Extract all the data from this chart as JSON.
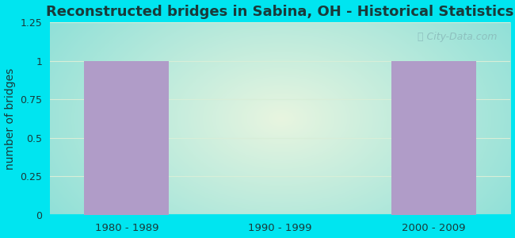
{
  "title": "Reconstructed bridges in Sabina, OH - Historical Statistics",
  "categories": [
    "1980 - 1989",
    "1990 - 1999",
    "2000 - 2009"
  ],
  "values": [
    1,
    0,
    1
  ],
  "bar_color": "#b09cc8",
  "ylabel": "number of bridges",
  "ylim": [
    0,
    1.25
  ],
  "yticks": [
    0,
    0.25,
    0.5,
    0.75,
    1,
    1.25
  ],
  "background_outer": "#00e5f0",
  "background_center": "#eaf5e8",
  "background_edge": "#b8eee8",
  "title_color": "#1a3a3a",
  "axis_label_color": "#1a3a3a",
  "tick_label_color": "#1a3a3a",
  "grid_color": "#d8eed8",
  "watermark": "City-Data.com",
  "title_fontsize": 13,
  "ylabel_fontsize": 10
}
